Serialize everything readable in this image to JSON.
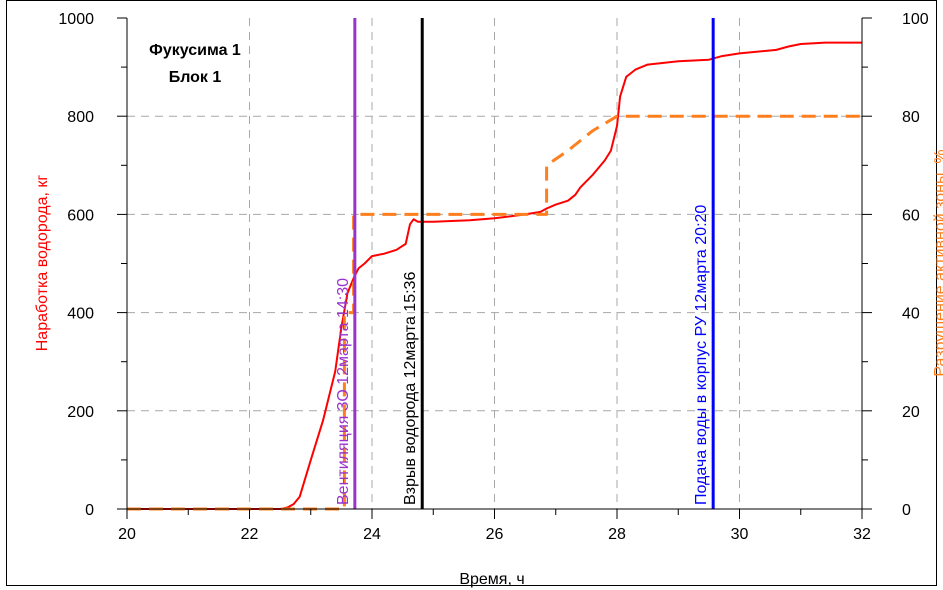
{
  "chart_data": {
    "type": "line",
    "title": "Фукусима 1",
    "subtitle": "Блок 1",
    "xlabel": "Время, ч",
    "ylabel": "Наработка водорода, кг",
    "y2label": "Разрушение активной зоны, %",
    "xlim": [
      20,
      32
    ],
    "ylim": [
      0,
      1000
    ],
    "y2lim": [
      0,
      100
    ],
    "xticks": [
      20,
      22,
      24,
      26,
      28,
      30,
      32
    ],
    "yticks": [
      0,
      200,
      400,
      600,
      800,
      1000
    ],
    "y2ticks": [
      0,
      20,
      40,
      60,
      80,
      100
    ],
    "grid": true,
    "series": [
      {
        "name": "",
        "axis": "left",
        "color": "#ff0000",
        "style": "solid",
        "x": [
          20,
          22,
          22.5,
          22.62,
          22.72,
          22.82,
          23.0,
          23.2,
          23.4,
          23.5,
          23.6,
          23.7,
          23.78,
          23.88,
          24.0,
          24.2,
          24.4,
          24.55,
          24.62,
          24.68,
          24.75,
          25.0,
          25.6,
          26.0,
          26.5,
          26.75,
          26.85,
          27.0,
          27.2,
          27.32,
          27.4,
          27.6,
          27.8,
          27.9,
          28.0,
          28.05,
          28.15,
          28.3,
          28.5,
          29.0,
          29.5,
          29.7,
          30.0,
          30.6,
          30.8,
          31.0,
          31.4,
          32.0
        ],
        "values": [
          0,
          0,
          0,
          3,
          10,
          25,
          100,
          180,
          280,
          370,
          440,
          470,
          490,
          500,
          515,
          520,
          528,
          540,
          580,
          590,
          585,
          585,
          588,
          592,
          600,
          605,
          612,
          620,
          628,
          640,
          655,
          680,
          710,
          730,
          780,
          840,
          880,
          895,
          905,
          912,
          915,
          922,
          928,
          935,
          942,
          947,
          950,
          950
        ]
      },
      {
        "name": "",
        "axis": "right",
        "color": "#ff7f1e",
        "style": "dashed",
        "x": [
          20,
          23.45,
          23.55,
          23.55,
          23.7,
          23.7,
          26.7,
          26.85,
          26.85,
          27.2,
          27.6,
          28.0,
          32.0
        ],
        "values": [
          0,
          0,
          0,
          40,
          40,
          60,
          60,
          60,
          70,
          73,
          77,
          80,
          80
        ]
      }
    ],
    "annotations": [
      {
        "text": "Вентиляция ЗО 12марта 14:30",
        "x": 23.72,
        "color": "#9933cc"
      },
      {
        "text": "Взрыв водорода 12марта 15:36",
        "x": 24.82,
        "color": "#000000"
      },
      {
        "text": "Подача воды в корпус РУ 12марта 20:20",
        "x": 29.57,
        "color": "#0000ff"
      }
    ]
  }
}
